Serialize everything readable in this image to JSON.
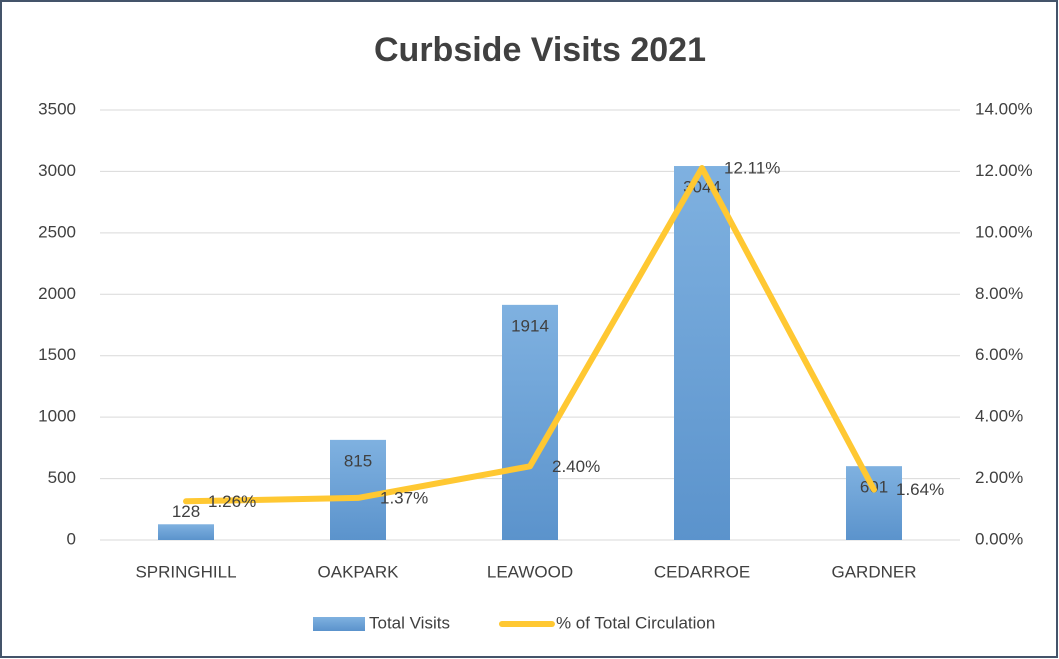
{
  "chart_data": {
    "type": "bar",
    "title": "Curbside Visits 2021",
    "categories": [
      "SPRINGHILL",
      "OAKPARK",
      "LEAWOOD",
      "CEDARROE",
      "GARDNER"
    ],
    "series": [
      {
        "name": "Total Visits",
        "type": "bar",
        "color": "#5b9bd5",
        "values": [
          128,
          815,
          1914,
          3044,
          601
        ]
      },
      {
        "name": "% of Total Circulation",
        "type": "line",
        "axis": "y2",
        "color": "#ffc832",
        "values": [
          1.26,
          1.37,
          2.4,
          12.11,
          1.64
        ],
        "value_labels": [
          "1.26%",
          "1.37%",
          "2.40%",
          "12.11%",
          "1.64%"
        ]
      }
    ],
    "ylim": [
      0,
      3500
    ],
    "yticks": [
      0,
      500,
      1000,
      1500,
      2000,
      2500,
      3000,
      3500
    ],
    "y2lim": [
      0,
      14
    ],
    "y2ticks": [
      {
        "value": 0,
        "label": "0.00%"
      },
      {
        "value": 2,
        "label": "2.00%"
      },
      {
        "value": 4,
        "label": "4.00%"
      },
      {
        "value": 6,
        "label": "6.00%"
      },
      {
        "value": 8,
        "label": "8.00%"
      },
      {
        "value": 10,
        "label": "10.00%"
      },
      {
        "value": 12,
        "label": "12.00%"
      },
      {
        "value": 14,
        "label": "14.00%"
      }
    ],
    "grid": true,
    "legend": "bottom"
  }
}
